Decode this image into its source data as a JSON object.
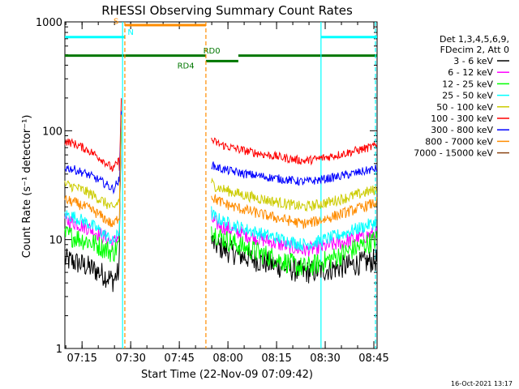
{
  "chart_data": {
    "type": "line",
    "title": "RHESSI Observing Summary Count Rates",
    "xlabel": "Start Time (22-Nov-09 07:09:42)",
    "ylabel": "Count Rate (s⁻¹ detector⁻¹)",
    "ylim": [
      1,
      1000
    ],
    "yscale": "log",
    "xlim_minutes": [
      0,
      96.3
    ],
    "y_ticks": [
      {
        "value": 1,
        "label": "1"
      },
      {
        "value": 10,
        "label": "10"
      },
      {
        "value": 100,
        "label": "100"
      },
      {
        "value": 1000,
        "label": "1000"
      }
    ],
    "x_ticks": [
      {
        "minute": 5.3,
        "label": "07:15"
      },
      {
        "minute": 20.3,
        "label": "07:30"
      },
      {
        "minute": 35.3,
        "label": "07:45"
      },
      {
        "minute": 50.3,
        "label": "08:00"
      },
      {
        "minute": 65.3,
        "label": "08:15"
      },
      {
        "minute": 80.3,
        "label": "08:30"
      },
      {
        "minute": 95.3,
        "label": "08:45"
      }
    ],
    "legend_header": [
      "Det 1,3,4,5,6,9,",
      "FDecim 2, Att 0"
    ],
    "series": [
      {
        "name": "3 - 6 keV",
        "color": "#000000",
        "start": 6.5,
        "min": 4.2,
        "flare": 150,
        "post_start": 10,
        "post_min": 5,
        "end": 6.5,
        "noise": 0.11
      },
      {
        "name": "6 - 12 keV",
        "color": "#ff00ff",
        "start": 15,
        "min": 9.2,
        "flare": 160,
        "post_start": 16,
        "post_min": 8,
        "end": 11.5,
        "noise": 0.07
      },
      {
        "name": "12 - 25 keV",
        "color": "#00ff00",
        "start": 11,
        "min": 7.5,
        "flare": 155,
        "post_start": 13,
        "post_min": 5.5,
        "end": 10,
        "noise": 0.1
      },
      {
        "name": "25 - 50 keV",
        "color": "#00ffff",
        "start": 17,
        "min": 9.5,
        "flare": 170,
        "post_start": 18,
        "post_min": 9,
        "end": 14.5,
        "noise": 0.06
      },
      {
        "name": "50 - 100 keV",
        "color": "#cccc00",
        "start": 32,
        "min": 19,
        "flare": 180,
        "post_start": 34,
        "post_min": 20,
        "end": 29,
        "noise": 0.05
      },
      {
        "name": "100 - 300 keV",
        "color": "#ff0000",
        "start": 80,
        "min": 44,
        "flare": 230,
        "post_start": 85,
        "post_min": 53,
        "end": 73,
        "noise": 0.04
      },
      {
        "name": "300 - 800 keV",
        "color": "#0000ff",
        "start": 46,
        "min": 29,
        "flare": 200,
        "post_start": 50,
        "post_min": 34,
        "end": 45,
        "noise": 0.04
      },
      {
        "name": "800 - 7000 keV",
        "color": "#ff8c00",
        "start": 23,
        "min": 13.5,
        "flare": 190,
        "post_start": 26,
        "post_min": 14,
        "end": 22,
        "noise": 0.05
      },
      {
        "name": "7000 - 15000 keV",
        "color": "#8b4513",
        "start": 0,
        "min": 0,
        "flare": 0,
        "post_start": 0,
        "post_min": 0,
        "end": 0,
        "noise": 0
      }
    ],
    "flags": [
      {
        "label": "S",
        "color": "#ff8c00",
        "start": 18.5,
        "end": 43.5,
        "level": 1.27
      },
      {
        "label": "N",
        "color": "#00ffff",
        "start": 0,
        "end": 18.5,
        "level": 1.16
      },
      {
        "label": "N",
        "color": "#00ffff",
        "start": 79,
        "end": 96.3,
        "level": 1.16
      },
      {
        "label": "RD0",
        "color": "#007700",
        "start": 0,
        "end": 43.5,
        "level": 0.99
      },
      {
        "label": "RD0",
        "color": "#007700",
        "start": 53.5,
        "end": 96.3,
        "level": 0.99
      },
      {
        "label": "RD4",
        "color": "#007700",
        "start": 43.5,
        "end": 53.5,
        "level": 0.94
      }
    ],
    "flag_labels": [
      {
        "text": "S",
        "color": "#ff8c00",
        "minute": 15.8,
        "level": 1.31
      },
      {
        "text": "N",
        "color": "#00ffff",
        "minute": 20.3,
        "level": 1.21
      },
      {
        "text": "RD0",
        "color": "#007700",
        "minute": 45.3,
        "level": 1.04
      },
      {
        "text": "RD4",
        "color": "#007700",
        "minute": 37.3,
        "level": 0.9
      }
    ],
    "vertical_lines": [
      {
        "minute": 17.8,
        "color": "#00ffff",
        "dash": false
      },
      {
        "minute": 18.5,
        "color": "#ff8c00",
        "dash": true
      },
      {
        "minute": 43.5,
        "color": "#ff8c00",
        "dash": true
      },
      {
        "minute": 79.0,
        "color": "#00ffff",
        "dash": false
      },
      {
        "minute": 95.8,
        "color": "#00ffff",
        "dash": true
      }
    ],
    "segments": {
      "seg1": [
        0,
        17.5
      ],
      "gap": [
        18.5,
        45.2
      ],
      "seg2": [
        45.2,
        96.3
      ]
    }
  },
  "footer": {
    "date": "16-Oct-2021 13:17"
  }
}
